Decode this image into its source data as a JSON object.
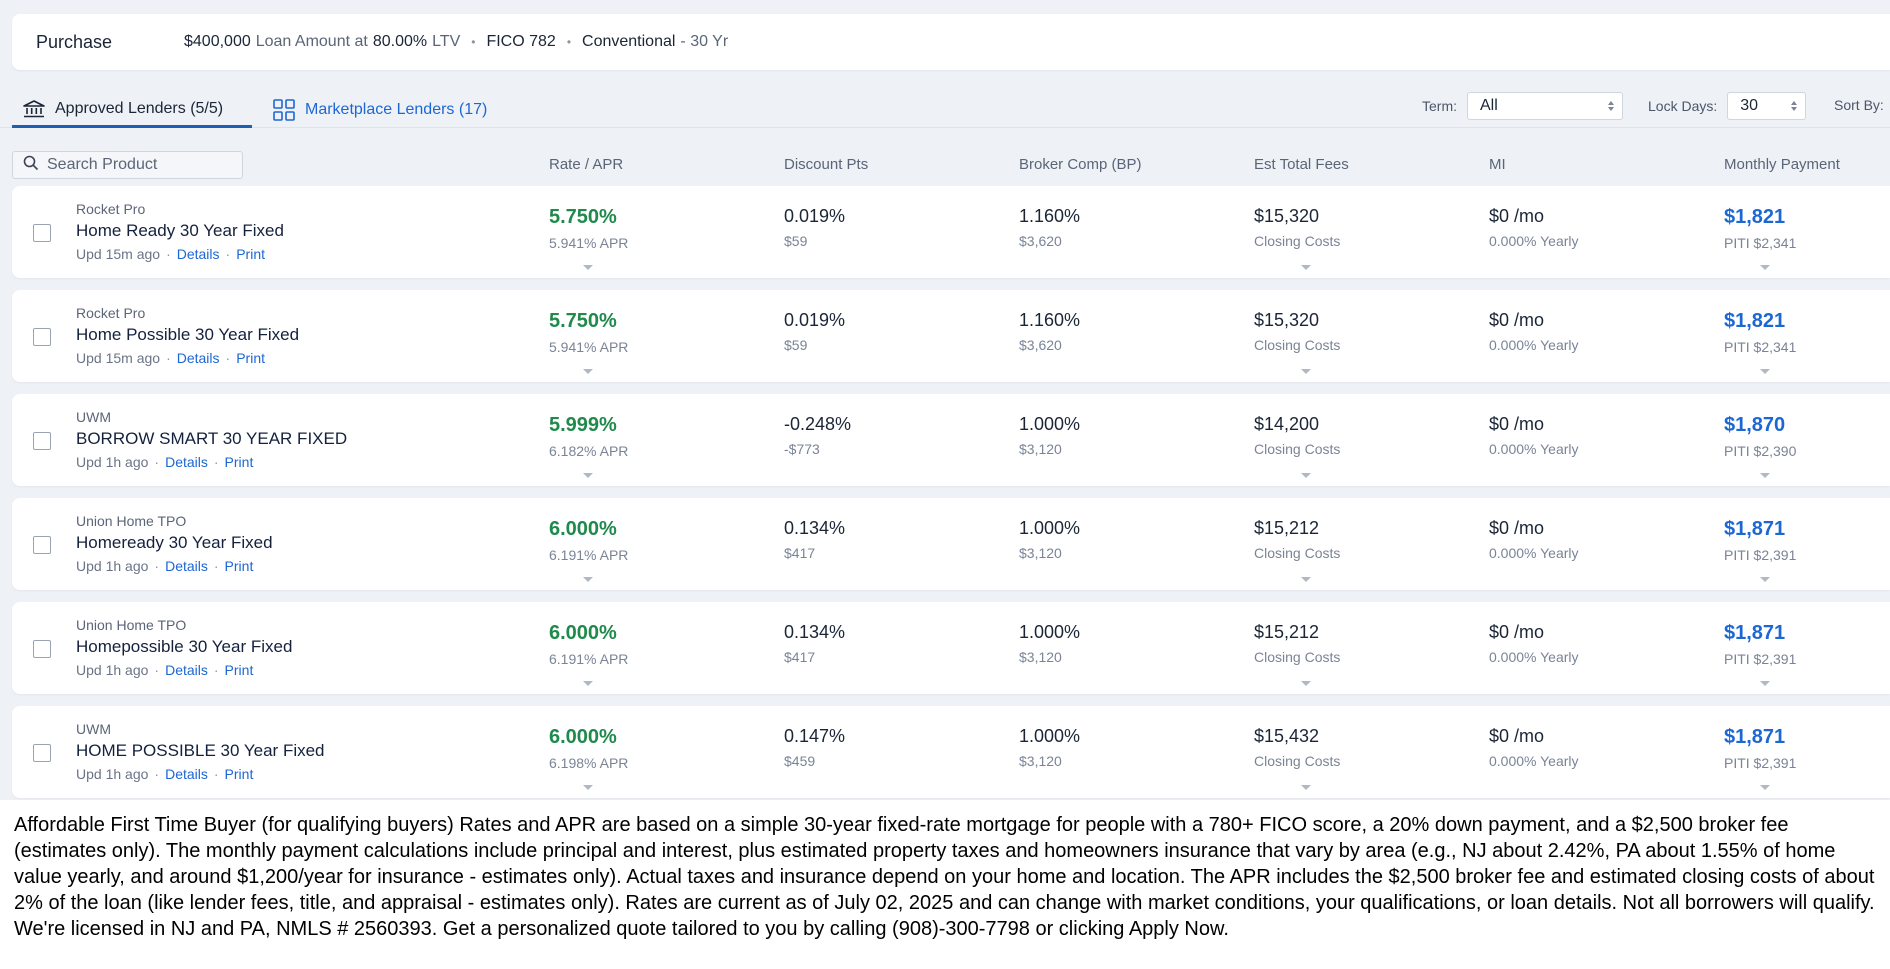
{
  "summary": {
    "purpose": "Purchase",
    "loan_amount": "$400,000",
    "loan_amount_label": "Loan Amount at",
    "ltv_value": "80.00%",
    "ltv_label": "LTV",
    "fico": "FICO 782",
    "loan_type": "Conventional",
    "term_suffix": "- 30 Yr"
  },
  "tabs": [
    {
      "label": "Approved Lenders (5/5)",
      "icon": "bank-icon",
      "active": true
    },
    {
      "label": "Marketplace Lenders (17)",
      "icon": "grid-icon",
      "active": false
    }
  ],
  "filters": {
    "term_label": "Term:",
    "term_value": "All",
    "lock_label": "Lock Days:",
    "lock_value": "30",
    "sort_label": "Sort By:"
  },
  "search": {
    "placeholder": "Search Product"
  },
  "columns": [
    "Rate / APR",
    "Discount Pts",
    "Broker Comp (BP)",
    "Est Total Fees",
    "MI",
    "Monthly Payment"
  ],
  "rows": [
    {
      "lender": "Rocket Pro",
      "product": "Home Ready 30 Year Fixed",
      "updated": "Upd 15m ago",
      "details": "Details",
      "print": "Print",
      "rate": "5.750%",
      "apr": "5.941% APR",
      "points": "0.019%",
      "points_dollar": "$59",
      "comp": "1.160%",
      "comp_dollar": "$3,620",
      "fees": "$15,320",
      "fees_label": "Closing Costs",
      "mi": "$0 /mo",
      "mi_yearly": "0.000% Yearly",
      "payment": "$1,821",
      "piti": "PITI $2,341"
    },
    {
      "lender": "Rocket Pro",
      "product": "Home Possible 30 Year Fixed",
      "updated": "Upd 15m ago",
      "details": "Details",
      "print": "Print",
      "rate": "5.750%",
      "apr": "5.941% APR",
      "points": "0.019%",
      "points_dollar": "$59",
      "comp": "1.160%",
      "comp_dollar": "$3,620",
      "fees": "$15,320",
      "fees_label": "Closing Costs",
      "mi": "$0 /mo",
      "mi_yearly": "0.000% Yearly",
      "payment": "$1,821",
      "piti": "PITI $2,341"
    },
    {
      "lender": "UWM",
      "product": "BORROW SMART 30 YEAR FIXED",
      "updated": "Upd 1h ago",
      "details": "Details",
      "print": "Print",
      "rate": "5.999%",
      "apr": "6.182% APR",
      "points": "-0.248%",
      "points_dollar": "-$773",
      "comp": "1.000%",
      "comp_dollar": "$3,120",
      "fees": "$14,200",
      "fees_label": "Closing Costs",
      "mi": "$0 /mo",
      "mi_yearly": "0.000% Yearly",
      "payment": "$1,870",
      "piti": "PITI $2,390"
    },
    {
      "lender": "Union Home TPO",
      "product": "Homeready 30 Year Fixed",
      "updated": "Upd 1h ago",
      "details": "Details",
      "print": "Print",
      "rate": "6.000%",
      "apr": "6.191% APR",
      "points": "0.134%",
      "points_dollar": "$417",
      "comp": "1.000%",
      "comp_dollar": "$3,120",
      "fees": "$15,212",
      "fees_label": "Closing Costs",
      "mi": "$0 /mo",
      "mi_yearly": "0.000% Yearly",
      "payment": "$1,871",
      "piti": "PITI $2,391"
    },
    {
      "lender": "Union Home TPO",
      "product": "Homepossible 30 Year Fixed",
      "updated": "Upd 1h ago",
      "details": "Details",
      "print": "Print",
      "rate": "6.000%",
      "apr": "6.191% APR",
      "points": "0.134%",
      "points_dollar": "$417",
      "comp": "1.000%",
      "comp_dollar": "$3,120",
      "fees": "$15,212",
      "fees_label": "Closing Costs",
      "mi": "$0 /mo",
      "mi_yearly": "0.000% Yearly",
      "payment": "$1,871",
      "piti": "PITI $2,391"
    },
    {
      "lender": "UWM",
      "product": "HOME POSSIBLE 30 Year Fixed",
      "updated": "Upd 1h ago",
      "details": "Details",
      "print": "Print",
      "rate": "6.000%",
      "apr": "6.198% APR",
      "points": "0.147%",
      "points_dollar": "$459",
      "comp": "1.000%",
      "comp_dollar": "$3,120",
      "fees": "$15,432",
      "fees_label": "Closing Costs",
      "mi": "$0 /mo",
      "mi_yearly": "0.000% Yearly",
      "payment": "$1,871",
      "piti": "PITI $2,391"
    }
  ],
  "disclaimer": "Affordable First Time Buyer (for qualifying buyers) Rates and APR are based on a simple 30-year fixed-rate mortgage for people with a 780+ FICO score, a 20% down payment, and a $2,500 broker fee (estimates only). The monthly payment calculations include principal and interest, plus estimated property taxes and homeowners insurance that vary by area (e.g., NJ about 2.42%, PA about 1.55% of home value yearly, and around $1,200/year for insurance - estimates only). Actual taxes and insurance depend on your home and location. The APR includes the $2,500 broker fee and estimated closing costs of about 2% of the loan (like lender fees, title, and appraisal - estimates only). Rates are current as of July 02, 2025 and can change with market conditions, your qualifications, or loan details. Not all borrowers will qualify. We're licensed in NJ and PA, NMLS # 2560393. Get a personalized quote tailored to you by calling (908)-300-7798 or clicking Apply Now.",
  "colors": {
    "rate_green": "#1f8a4c",
    "link_blue": "#1d67d3",
    "tab_underline": "#1d5fb4",
    "page_bg": "#eef2f6"
  }
}
